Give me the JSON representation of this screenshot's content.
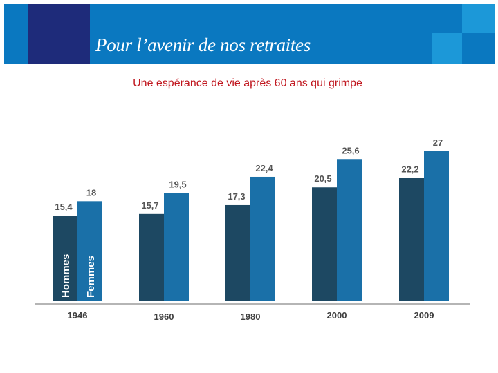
{
  "header": {
    "title": "Pour l’avenir de nos retraites",
    "colors": {
      "banner": "#0a78c0",
      "navy": "#1e2b7a",
      "light": "#1c98d8"
    }
  },
  "subtitle": "Une espérance de vie après 60 ans qui grimpe",
  "chart_data": {
    "type": "bar",
    "categories": [
      "1946",
      "1960",
      "1980",
      "2000",
      "2009"
    ],
    "series": [
      {
        "name": "Hommes",
        "values": [
          15.4,
          15.7,
          17.3,
          20.5,
          22.2
        ],
        "labels": [
          "15,4",
          "15,7",
          "17,3",
          "20,5",
          "22,2"
        ],
        "color": "#1d4862"
      },
      {
        "name": "Femmes",
        "values": [
          18,
          19.5,
          22.4,
          25.6,
          27
        ],
        "labels": [
          "18",
          "19,5",
          "22,4",
          "25,6",
          "27"
        ],
        "color": "#1a70a8"
      }
    ],
    "ylim": [
      0,
      27
    ],
    "grid": false,
    "legend": "inside-first-bars"
  }
}
